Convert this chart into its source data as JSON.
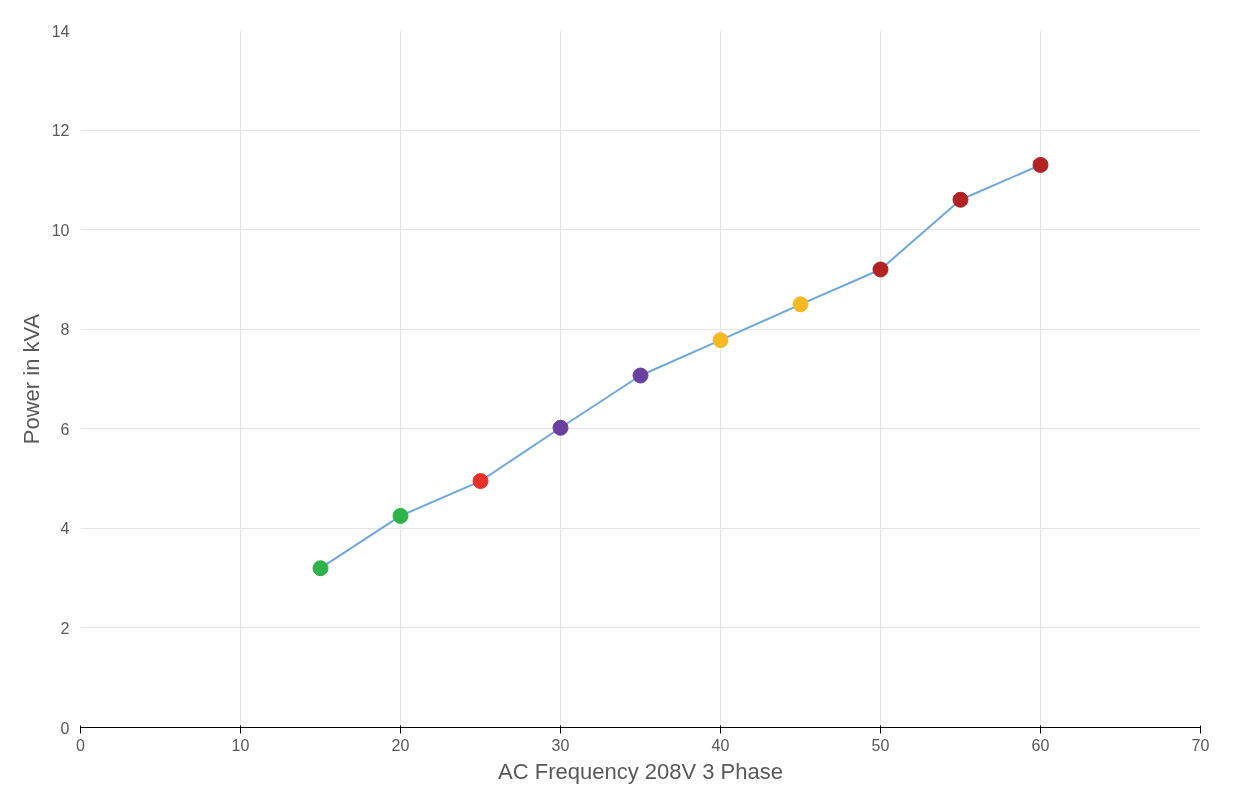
{
  "chart_data": {
    "type": "line",
    "xlabel": "AC Frequency 208V 3 Phase",
    "ylabel": "Power in kVA",
    "x": [
      15,
      20,
      25,
      30,
      35,
      40,
      45,
      50,
      55,
      60
    ],
    "series": [
      {
        "color": "#6fa8dc",
        "values": [
          3.2,
          4.25,
          4.95,
          6.02,
          7.07,
          7.78,
          8.5,
          9.2,
          10.6,
          11.3
        ],
        "colors": [
          "#2db34a",
          "#2db34a",
          "#e8302a",
          "#6a3fa0",
          "#6a3fa0",
          "#f5b923",
          "#f5b923",
          "#b22222",
          "#b22222",
          "#b22222"
        ]
      }
    ],
    "xlim": [
      0,
      70
    ],
    "xticks": [
      0,
      10,
      20,
      30,
      40,
      50,
      60,
      70
    ],
    "ylim": [
      0,
      14
    ],
    "yticks": [
      0,
      2,
      4,
      6,
      8,
      10,
      12,
      14
    ],
    "grid": true,
    "marker": "circle",
    "line_style": "solid"
  }
}
